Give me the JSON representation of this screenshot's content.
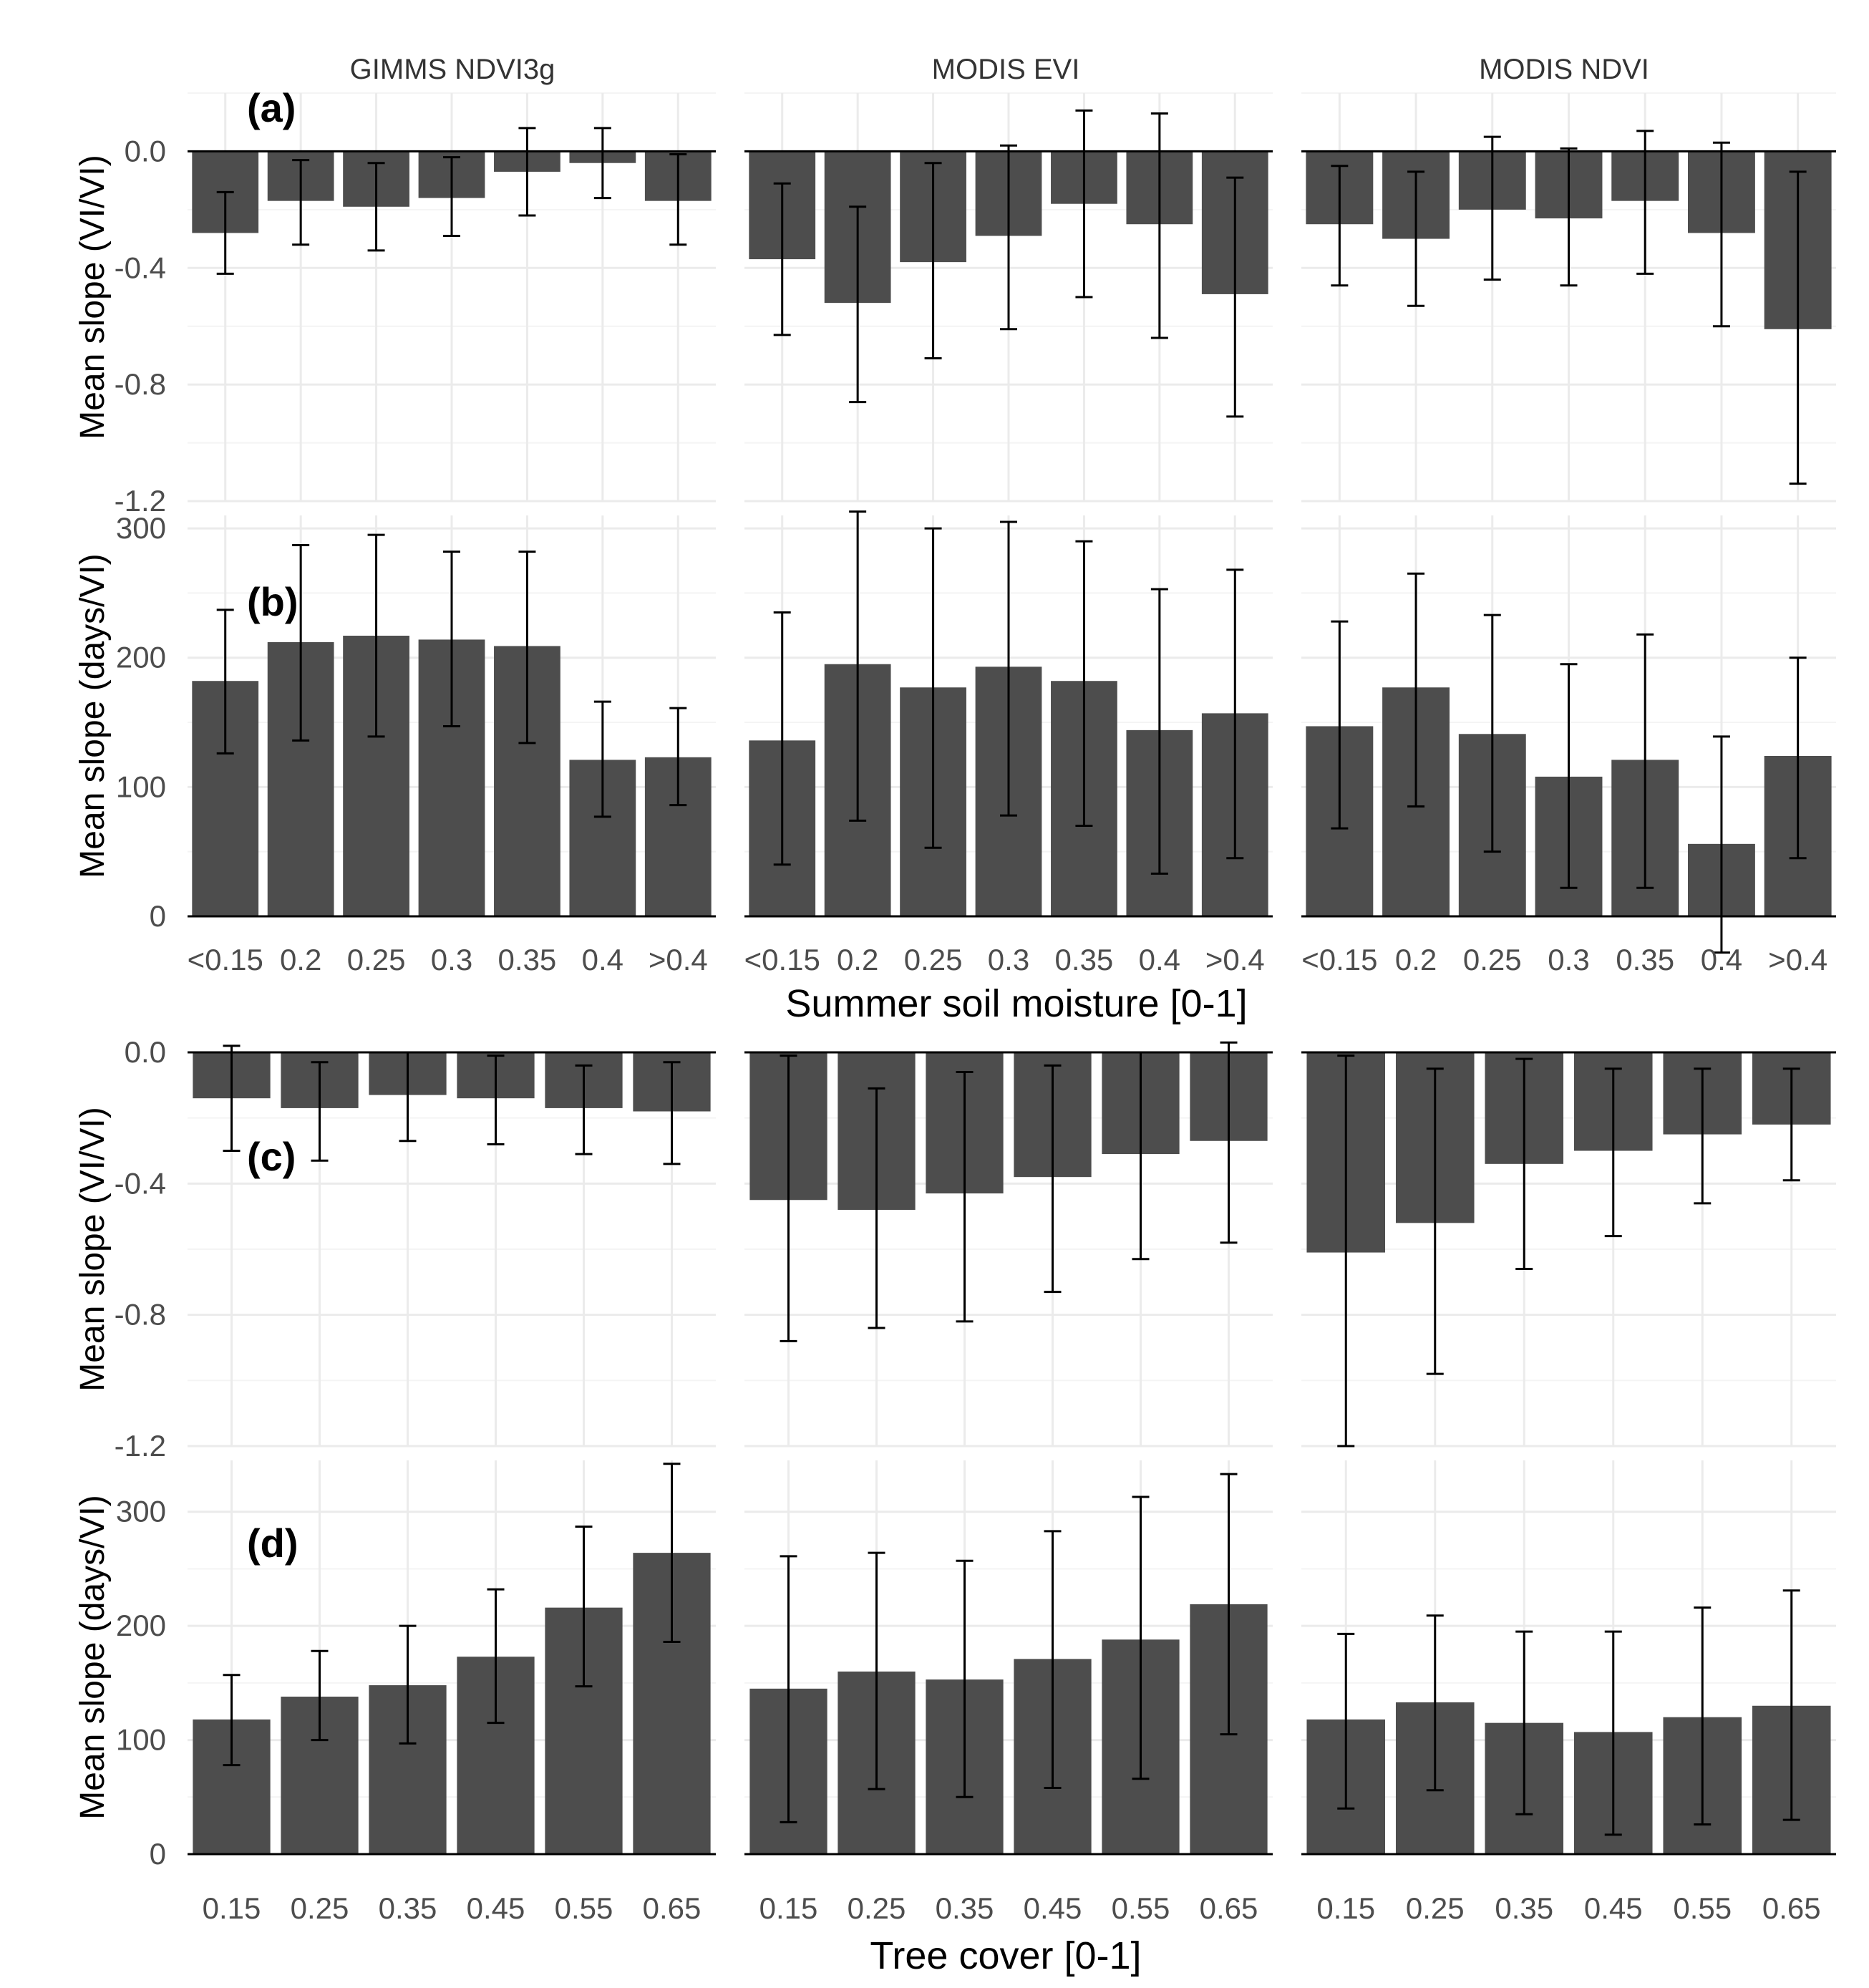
{
  "figure": {
    "columns": [
      "GIMMS NDVI3g",
      "MODIS EVI",
      "MODIS NDVI"
    ],
    "xlabel_top": "Summer soil moisture [0-1]",
    "xlabel_bottom": "Tree cover [0-1]",
    "panel_labels": [
      "(a)",
      "(b)",
      "(c)",
      "(d)"
    ],
    "ylabels": [
      "Mean slope (VI/VI)",
      "Mean slope (days/VI)",
      "Mean slope (VI/VI)",
      "Mean slope (days/VI)"
    ],
    "colors": {
      "bar": "#4d4d4d",
      "grid_major": "#ebebeb",
      "grid_minor": "#f4f4f4",
      "text": "#4d4d4d",
      "axis": "#000000"
    }
  },
  "chart_data": [
    {
      "type": "bar",
      "panel": "(a)",
      "ylabel": "Mean slope (VI/VI)",
      "categories": [
        "<0.15",
        "0.2",
        "0.25",
        "0.3",
        "0.35",
        "0.4",
        ">0.4"
      ],
      "ylim": [
        -1.2,
        0.2
      ],
      "yticks": [
        0.0,
        -0.4,
        -0.8,
        -1.2
      ],
      "grid": true,
      "facets": [
        {
          "name": "GIMMS NDVI3g",
          "values": [
            -0.28,
            -0.17,
            -0.19,
            -0.16,
            -0.07,
            -0.04,
            -0.17
          ],
          "err_low": [
            -0.42,
            -0.32,
            -0.34,
            -0.29,
            -0.22,
            -0.16,
            -0.32
          ],
          "err_high": [
            -0.14,
            -0.03,
            -0.04,
            -0.02,
            0.08,
            0.08,
            -0.01
          ]
        },
        {
          "name": "MODIS EVI",
          "values": [
            -0.37,
            -0.52,
            -0.38,
            -0.29,
            -0.18,
            -0.25,
            -0.49
          ],
          "err_low": [
            -0.63,
            -0.86,
            -0.71,
            -0.61,
            -0.5,
            -0.64,
            -0.91
          ],
          "err_high": [
            -0.11,
            -0.19,
            -0.04,
            0.02,
            0.14,
            0.13,
            -0.09
          ]
        },
        {
          "name": "MODIS NDVI",
          "values": [
            -0.25,
            -0.3,
            -0.2,
            -0.23,
            -0.17,
            -0.28,
            -0.61
          ],
          "err_low": [
            -0.46,
            -0.53,
            -0.44,
            -0.46,
            -0.42,
            -0.6,
            -1.14
          ],
          "err_high": [
            -0.05,
            -0.07,
            0.05,
            0.01,
            0.07,
            0.03,
            -0.07
          ]
        }
      ]
    },
    {
      "type": "bar",
      "panel": "(b)",
      "ylabel": "Mean slope (days/VI)",
      "categories": [
        "<0.15",
        "0.2",
        "0.25",
        "0.3",
        "0.35",
        "0.4",
        ">0.4"
      ],
      "ylim": [
        0,
        310
      ],
      "yticks": [
        0,
        100,
        200,
        300
      ],
      "grid": true,
      "facets": [
        {
          "name": "GIMMS NDVI3g",
          "values": [
            182,
            212,
            217,
            214,
            209,
            121,
            123
          ],
          "err_low": [
            126,
            136,
            139,
            147,
            134,
            77,
            86
          ],
          "err_high": [
            237,
            287,
            295,
            282,
            282,
            166,
            161
          ]
        },
        {
          "name": "MODIS EVI",
          "values": [
            136,
            195,
            177,
            193,
            182,
            144,
            157
          ],
          "err_low": [
            40,
            74,
            53,
            78,
            70,
            33,
            45
          ],
          "err_high": [
            235,
            313,
            300,
            305,
            290,
            253,
            268
          ]
        },
        {
          "name": "MODIS NDVI",
          "values": [
            147,
            177,
            141,
            108,
            121,
            56,
            124
          ],
          "err_low": [
            68,
            85,
            50,
            22,
            22,
            -28,
            45
          ],
          "err_high": [
            228,
            265,
            233,
            195,
            218,
            139,
            200
          ]
        }
      ]
    },
    {
      "type": "bar",
      "panel": "(c)",
      "ylabel": "Mean slope (VI/VI)",
      "categories": [
        "0.15",
        "0.25",
        "0.35",
        "0.45",
        "0.55",
        "0.65"
      ],
      "ylim": [
        -1.2,
        0.0
      ],
      "yticks": [
        0.0,
        -0.4,
        -0.8,
        -1.2
      ],
      "grid": true,
      "facets": [
        {
          "name": "GIMMS NDVI3g",
          "values": [
            -0.14,
            -0.17,
            -0.13,
            -0.14,
            -0.17,
            -0.18
          ],
          "err_low": [
            -0.3,
            -0.33,
            -0.27,
            -0.28,
            -0.31,
            -0.34
          ],
          "err_high": [
            0.02,
            -0.03,
            0.0,
            -0.01,
            -0.04,
            -0.03
          ]
        },
        {
          "name": "MODIS EVI",
          "values": [
            -0.45,
            -0.48,
            -0.43,
            -0.38,
            -0.31,
            -0.27
          ],
          "err_low": [
            -0.88,
            -0.84,
            -0.82,
            -0.73,
            -0.63,
            -0.58
          ],
          "err_high": [
            -0.01,
            -0.11,
            -0.06,
            -0.04,
            0.0,
            0.03
          ]
        },
        {
          "name": "MODIS NDVI",
          "values": [
            -0.61,
            -0.52,
            -0.34,
            -0.3,
            -0.25,
            -0.22
          ],
          "err_low": [
            -1.2,
            -0.98,
            -0.66,
            -0.56,
            -0.46,
            -0.39
          ],
          "err_high": [
            -0.01,
            -0.05,
            -0.02,
            -0.05,
            -0.05,
            -0.05
          ]
        }
      ]
    },
    {
      "type": "bar",
      "panel": "(d)",
      "ylabel": "Mean slope (days/VI)",
      "categories": [
        "0.15",
        "0.25",
        "0.35",
        "0.45",
        "0.55",
        "0.65"
      ],
      "ylim": [
        0,
        345
      ],
      "yticks": [
        0,
        100,
        200,
        300
      ],
      "grid": true,
      "facets": [
        {
          "name": "GIMMS NDVI3g",
          "values": [
            118,
            138,
            148,
            173,
            216,
            264
          ],
          "err_low": [
            78,
            100,
            97,
            115,
            147,
            186
          ],
          "err_high": [
            157,
            178,
            200,
            232,
            287,
            342
          ]
        },
        {
          "name": "MODIS EVI",
          "values": [
            145,
            160,
            153,
            171,
            188,
            219
          ],
          "err_low": [
            28,
            57,
            50,
            58,
            66,
            105
          ],
          "err_high": [
            261,
            264,
            257,
            283,
            313,
            333
          ]
        },
        {
          "name": "MODIS NDVI",
          "values": [
            118,
            133,
            115,
            107,
            120,
            130
          ],
          "err_low": [
            40,
            56,
            35,
            17,
            26,
            30
          ],
          "err_high": [
            193,
            209,
            195,
            195,
            216,
            231
          ]
        }
      ]
    }
  ]
}
